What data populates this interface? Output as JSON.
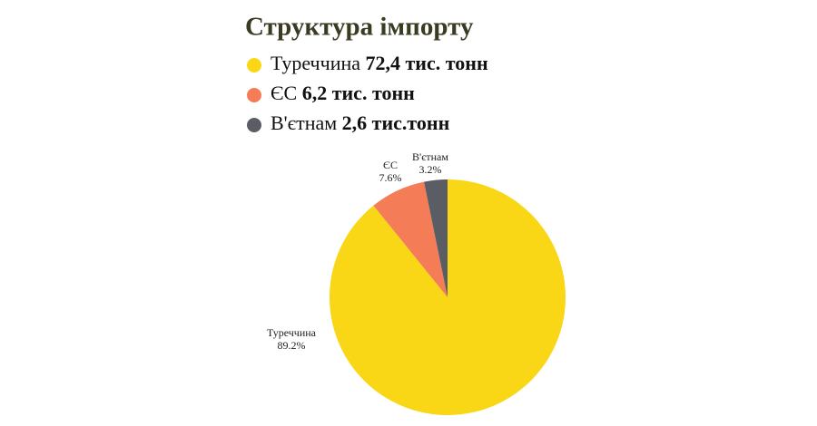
{
  "chart_data": {
    "type": "pie",
    "title": "Структура імпорту",
    "categories": [
      "Туреччина",
      "ЄС",
      "В'єтнам"
    ],
    "values": [
      89.2,
      7.6,
      3.2
    ],
    "value_labels": [
      "89.2%",
      "7.6%",
      "3.2%"
    ],
    "legend_amounts": [
      "72,4 тис. тонн",
      "6,2 тис. тонн",
      "2,6 тис.тонн"
    ],
    "colors": [
      "#f9d616",
      "#f47c57",
      "#5a5d63"
    ]
  }
}
